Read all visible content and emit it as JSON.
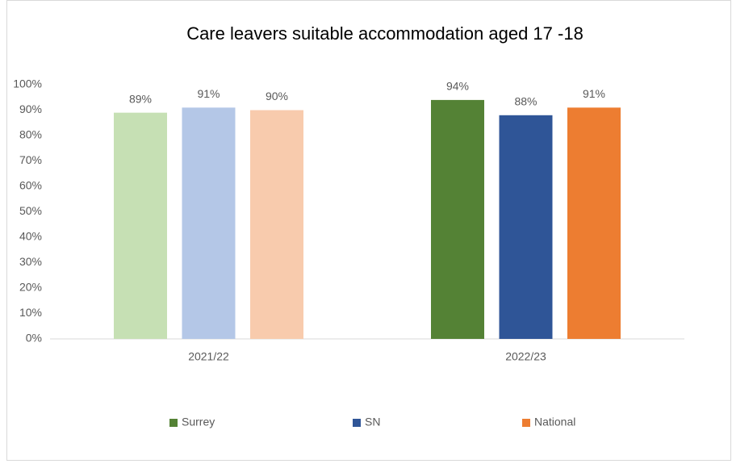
{
  "chart_data": {
    "type": "bar",
    "title": "Care leavers suitable accommodation aged 17 -18",
    "categories": [
      "2021/22",
      "2022/23"
    ],
    "series": [
      {
        "name": "Surrey",
        "color": "#548235",
        "point_colors": [
          "#c6e0b4",
          "#548235"
        ],
        "values": [
          89,
          94
        ],
        "value_labels": [
          "89%",
          "94%"
        ]
      },
      {
        "name": "SN",
        "color": "#2f5597",
        "point_colors": [
          "#b4c7e7",
          "#2f5597"
        ],
        "values": [
          91,
          88
        ],
        "value_labels": [
          "91%",
          "88%"
        ]
      },
      {
        "name": "National",
        "color": "#ed7d31",
        "point_colors": [
          "#f8cbad",
          "#ed7d31"
        ],
        "values": [
          90,
          91
        ],
        "value_labels": [
          "90%",
          "91%"
        ]
      }
    ],
    "ylim": [
      0,
      100
    ],
    "yticks": [
      {
        "value": 0,
        "label": "0%"
      },
      {
        "value": 10,
        "label": "10%"
      },
      {
        "value": 20,
        "label": "20%"
      },
      {
        "value": 30,
        "label": "30%"
      },
      {
        "value": 40,
        "label": "40%"
      },
      {
        "value": 50,
        "label": "50%"
      },
      {
        "value": 60,
        "label": "60%"
      },
      {
        "value": 70,
        "label": "70%"
      },
      {
        "value": 80,
        "label": "80%"
      },
      {
        "value": 90,
        "label": "90%"
      },
      {
        "value": 100,
        "label": "100%"
      }
    ],
    "grid": false,
    "legend": "bottom"
  }
}
